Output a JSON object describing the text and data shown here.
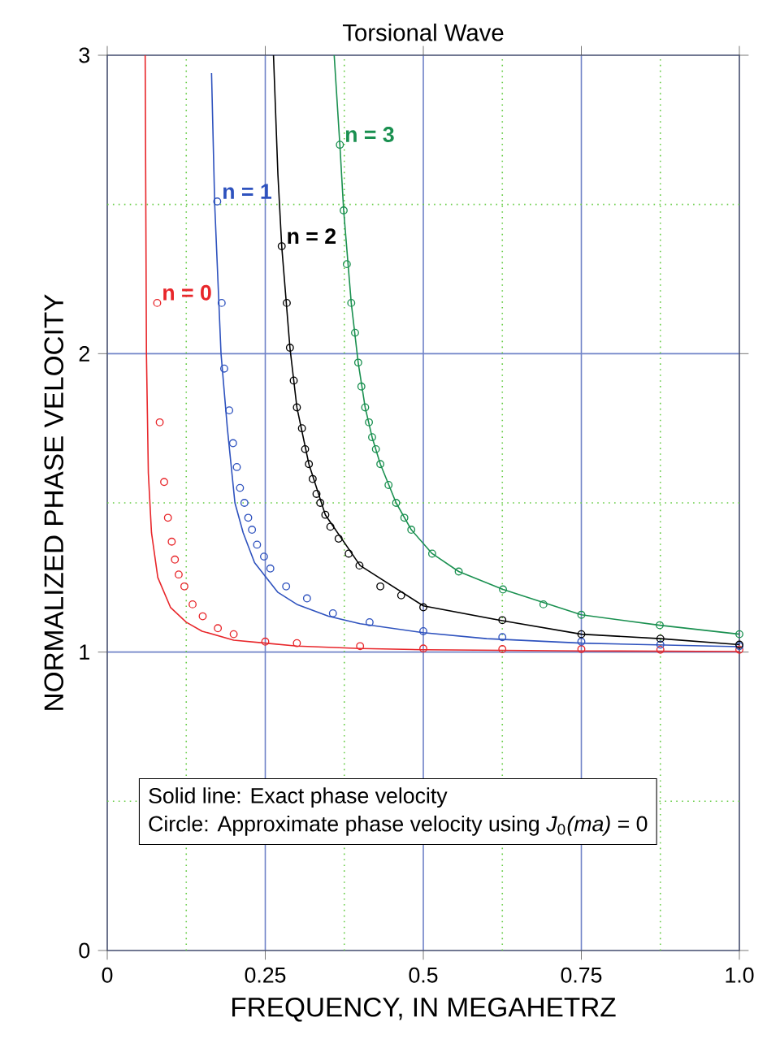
{
  "chart_data": {
    "type": "line",
    "title": "Torsional Wave",
    "xlabel": "FREQUENCY, IN MEGAHETRZ",
    "ylabel": "NORMALIZED PHASE VELOCITY",
    "xlim": [
      0,
      1
    ],
    "ylim": [
      0,
      3
    ],
    "xticks": [
      0,
      0.25,
      0.5,
      0.75,
      {
        "value": 1,
        "label": "1.0"
      }
    ],
    "yticks": [
      0,
      1,
      2,
      3
    ],
    "grid": true,
    "ref_lines": [
      {
        "axis": "x",
        "value": 0.125,
        "color": "#66cc44",
        "line_style": "dotted"
      },
      {
        "axis": "x",
        "value": 0.375,
        "color": "#66cc44",
        "line_style": "dotted"
      },
      {
        "axis": "x",
        "value": 0.625,
        "color": "#66cc44",
        "line_style": "dotted"
      },
      {
        "axis": "x",
        "value": 0.875,
        "color": "#66cc44",
        "line_style": "dotted"
      },
      {
        "axis": "y",
        "value": 0.5,
        "color": "#66cc44",
        "line_style": "dotted"
      },
      {
        "axis": "y",
        "value": 1.5,
        "color": "#66cc44",
        "line_style": "dotted"
      },
      {
        "axis": "y",
        "value": 2.5,
        "color": "#66cc44",
        "line_style": "dotted"
      }
    ],
    "annotations": [
      "Solid line: Exact phase velocity",
      "Circle: Approximate phase velocity using *J*$_{0}$*(ma)* = 0"
    ],
    "series": [
      {
        "type": "line",
        "marker": "none",
        "color": "#e8262a",
        "x": [
          0.06,
          0.061,
          0.062,
          0.065,
          0.07,
          0.08,
          0.1,
          0.125,
          0.15,
          0.2,
          0.25,
          0.3,
          0.4,
          0.5,
          0.75,
          1.0
        ],
        "values": [
          3.0,
          2.5,
          2.0,
          1.6,
          1.4,
          1.25,
          1.15,
          1.1,
          1.07,
          1.04,
          1.03,
          1.02,
          1.012,
          1.008,
          1.004,
          1.002
        ]
      },
      {
        "type": "line",
        "marker": "none",
        "color": "#2e52be",
        "x": [
          0.165,
          0.17,
          0.18,
          0.19,
          0.202,
          0.215,
          0.233,
          0.27,
          0.3,
          0.35,
          0.4,
          0.5,
          0.6,
          0.75,
          1.0
        ],
        "values": [
          2.94,
          2.5,
          2.0,
          1.75,
          1.5,
          1.4,
          1.3,
          1.2,
          1.16,
          1.12,
          1.095,
          1.065,
          1.045,
          1.03,
          1.018
        ]
      },
      {
        "type": "line",
        "marker": "none",
        "color": "#000000",
        "x": [
          0.263,
          0.27,
          0.276,
          0.289,
          0.3,
          0.319,
          0.345,
          0.4,
          0.5,
          0.625,
          0.75,
          0.875,
          1.0
        ],
        "values": [
          3.0,
          2.6,
          2.36,
          2.02,
          1.82,
          1.63,
          1.46,
          1.29,
          1.155,
          1.105,
          1.06,
          1.045,
          1.025
        ]
      },
      {
        "type": "line",
        "marker": "none",
        "color": "#1a9050",
        "x": [
          0.359,
          0.368,
          0.374,
          0.386,
          0.397,
          0.408,
          0.419,
          0.432,
          0.457,
          0.481,
          0.514,
          0.556,
          0.626,
          0.75,
          0.874,
          1.0
        ],
        "values": [
          3.0,
          2.7,
          2.48,
          2.17,
          1.97,
          1.82,
          1.72,
          1.63,
          1.5,
          1.41,
          1.33,
          1.27,
          1.21,
          1.125,
          1.09,
          1.06
        ]
      },
      {
        "type": "scatter",
        "marker": "circle",
        "name": "n = 0",
        "color": "#e8262a",
        "x": [
          0.079,
          0.083,
          0.09,
          0.096,
          0.102,
          0.107,
          0.113,
          0.122,
          0.135,
          0.151,
          0.175,
          0.2,
          0.25,
          0.3,
          0.4,
          0.5,
          0.625,
          0.75,
          0.875,
          1.0
        ],
        "values": [
          2.17,
          1.77,
          1.57,
          1.45,
          1.37,
          1.31,
          1.26,
          1.22,
          1.16,
          1.12,
          1.08,
          1.06,
          1.035,
          1.03,
          1.02,
          1.012,
          1.01,
          1.01,
          1.008,
          1.008
        ]
      },
      {
        "type": "scatter",
        "marker": "circle",
        "name": "n = 1",
        "color": "#2e52be",
        "x": [
          0.174,
          0.181,
          0.185,
          0.193,
          0.199,
          0.205,
          0.21,
          0.217,
          0.223,
          0.229,
          0.237,
          0.248,
          0.258,
          0.283,
          0.316,
          0.357,
          0.415,
          0.5,
          0.625,
          0.75,
          0.875,
          1.0
        ],
        "values": [
          2.51,
          2.17,
          1.95,
          1.81,
          1.7,
          1.62,
          1.55,
          1.5,
          1.45,
          1.41,
          1.36,
          1.32,
          1.28,
          1.22,
          1.18,
          1.13,
          1.1,
          1.07,
          1.05,
          1.035,
          1.025,
          1.02
        ]
      },
      {
        "type": "scatter",
        "marker": "circle",
        "name": "n = 2",
        "color": "#000000",
        "x": [
          0.276,
          0.284,
          0.289,
          0.295,
          0.3,
          0.308,
          0.313,
          0.319,
          0.325,
          0.331,
          0.337,
          0.345,
          0.353,
          0.366,
          0.382,
          0.399,
          0.432,
          0.465,
          0.5,
          0.625,
          0.75,
          0.875,
          1.0
        ],
        "values": [
          2.36,
          2.17,
          2.02,
          1.91,
          1.82,
          1.75,
          1.68,
          1.63,
          1.58,
          1.53,
          1.5,
          1.46,
          1.42,
          1.38,
          1.33,
          1.29,
          1.22,
          1.19,
          1.15,
          1.107,
          1.06,
          1.045,
          1.025
        ]
      },
      {
        "type": "scatter",
        "marker": "circle",
        "name": "n = 3",
        "color": "#1a9050",
        "x": [
          0.368,
          0.374,
          0.379,
          0.386,
          0.392,
          0.397,
          0.402,
          0.408,
          0.414,
          0.419,
          0.425,
          0.432,
          0.445,
          0.457,
          0.47,
          0.481,
          0.514,
          0.556,
          0.626,
          0.69,
          0.75,
          0.874,
          1.0
        ],
        "values": [
          2.7,
          2.48,
          2.3,
          2.17,
          2.07,
          1.97,
          1.89,
          1.82,
          1.77,
          1.72,
          1.68,
          1.63,
          1.56,
          1.5,
          1.45,
          1.41,
          1.33,
          1.27,
          1.21,
          1.16,
          1.125,
          1.09,
          1.06
        ]
      }
    ]
  }
}
